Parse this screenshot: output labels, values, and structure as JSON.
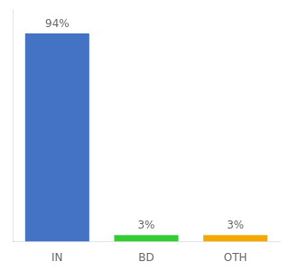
{
  "chart_data": {
    "type": "bar",
    "categories": [
      "IN",
      "BD",
      "OTH"
    ],
    "values": [
      94,
      3,
      3
    ],
    "value_labels": [
      "94%",
      "3%",
      "3%"
    ],
    "colors": [
      "#4472c4",
      "#33cc33",
      "#f5a800"
    ],
    "data_labels": true,
    "ylim": [
      0,
      105
    ],
    "tick_labels": "x",
    "grid": false
  }
}
